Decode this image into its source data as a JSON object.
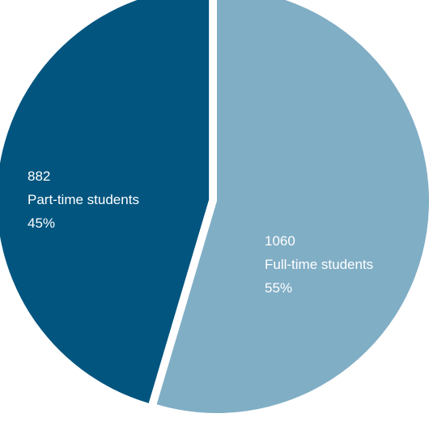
{
  "chart_data": {
    "type": "pie",
    "title": "",
    "slices": [
      {
        "value": 882,
        "label": "Part-time students",
        "percent_label": "45%",
        "color": "#02557f",
        "exploded": true
      },
      {
        "value": 1060,
        "label": "Full-time students",
        "percent_label": "55%",
        "color": "#80aec5",
        "exploded": false
      }
    ],
    "legend": "none",
    "start": "12 o'clock",
    "direction": "counter-clockwise for first slice"
  }
}
